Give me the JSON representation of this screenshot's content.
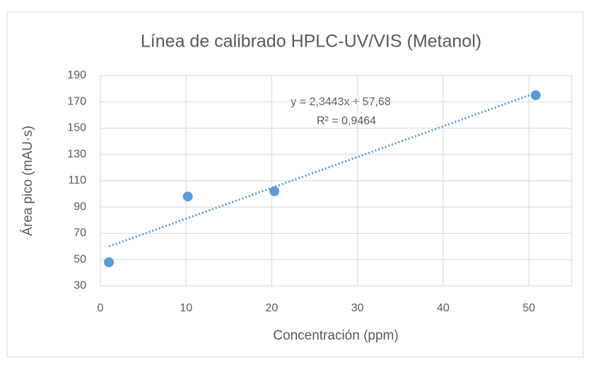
{
  "chart_data": {
    "type": "scatter",
    "title": "Línea de calibrado HPLC-UV/VIS (Metanol)",
    "x_label": "Concentración (ppm)",
    "y_label": "Área pico (mAU·s)",
    "series": [
      {
        "name": "Metanol",
        "color": "#5b9bd5",
        "x": [
          1,
          10.2,
          20.3,
          50.8
        ],
        "values": [
          48,
          98,
          102,
          175
        ]
      }
    ],
    "trendline": {
      "slope": 2.3443,
      "intercept": 57.68,
      "equation": "y = 2,3443x + 57,68",
      "r2": "R² = 0,9464"
    },
    "xlim": [
      0,
      55
    ],
    "xticks": [
      0,
      10,
      20,
      30,
      40,
      50
    ],
    "ylim": [
      30,
      190
    ],
    "yticks": [
      30,
      50,
      70,
      90,
      110,
      130,
      150,
      170,
      190
    ],
    "grid": true
  }
}
